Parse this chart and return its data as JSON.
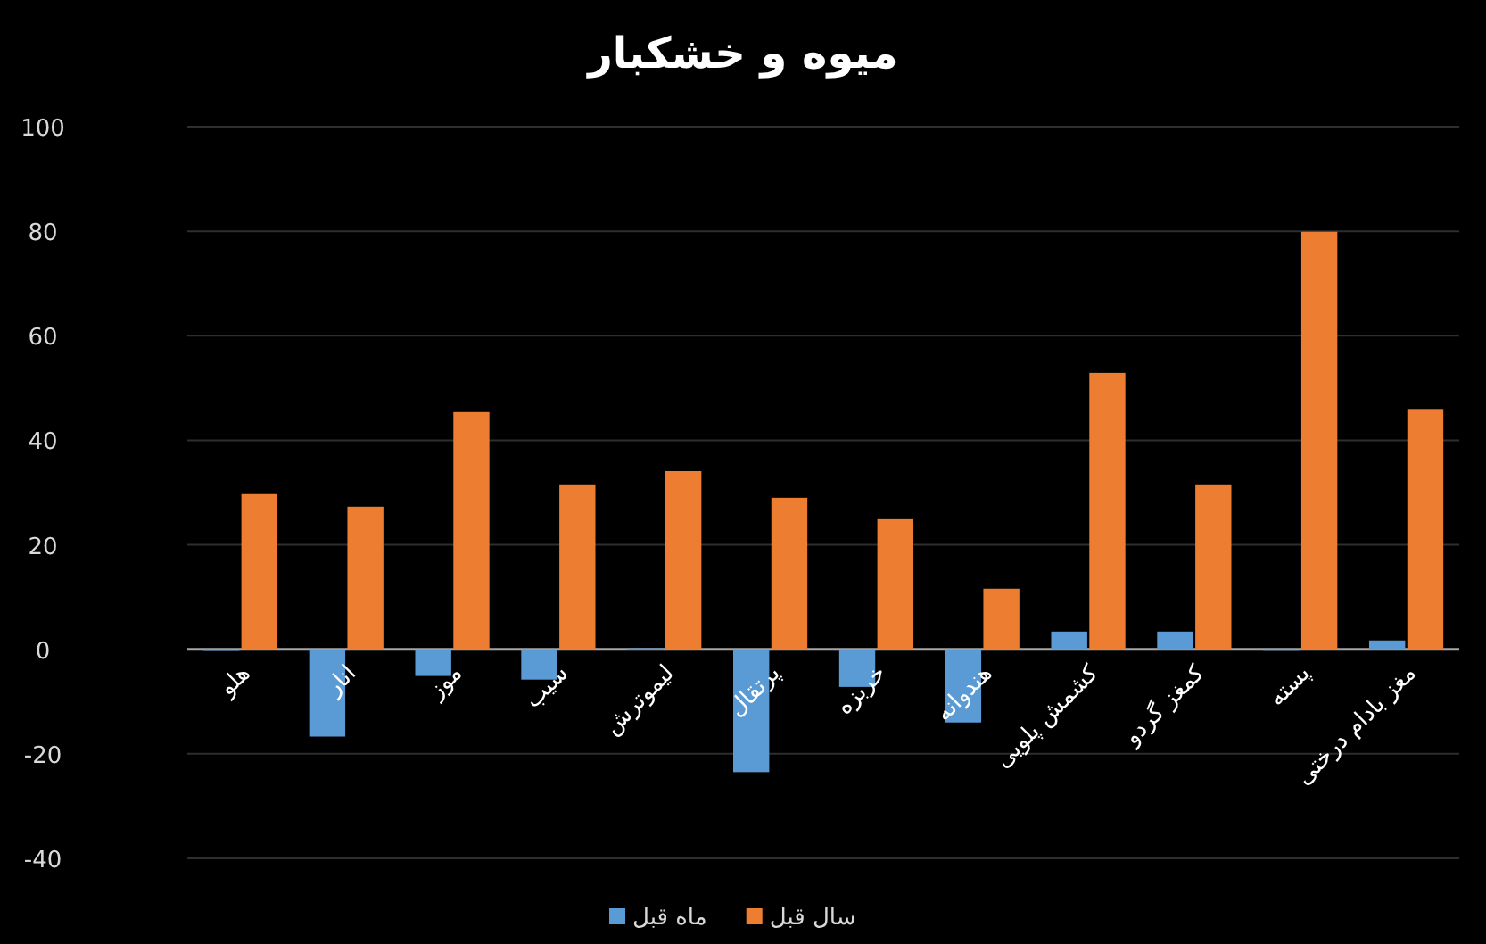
{
  "chart_data": {
    "type": "bar",
    "title": "میوه و خشکبار",
    "categories": [
      "هلو",
      "انار",
      "موز",
      "سیب",
      "لیموترش",
      "پرتقال",
      "خربزه",
      "هندوانه",
      "کشمش پلویی",
      "کمغز گردو",
      "پسته",
      "مغز بادام درختی"
    ],
    "series": [
      {
        "name": "ماه قبل",
        "color": "#5b9bd5",
        "values": [
          -0.3,
          -16.7,
          -5.1,
          -5.8,
          0.2,
          -23.5,
          -7.2,
          -14,
          3.4,
          3.4,
          -0.2,
          1.7
        ]
      },
      {
        "name": "سال قبل",
        "color": "#ed7d31",
        "values": [
          29.7,
          27.3,
          45.4,
          31.4,
          34.1,
          29,
          24.9,
          11.6,
          52.9,
          31.4,
          79.9,
          46
        ]
      }
    ],
    "ylim": [
      -40,
      100
    ],
    "yticks": [
      -40,
      -20,
      0,
      20,
      40,
      60,
      80,
      100
    ],
    "grid": "y",
    "legend": "bottom"
  }
}
